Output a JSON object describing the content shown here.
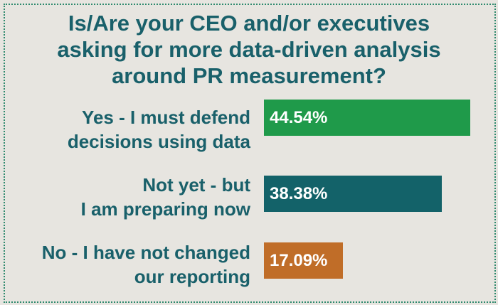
{
  "chart_data": {
    "type": "bar",
    "orientation": "horizontal",
    "title_lines": [
      "Is/Are your CEO and/or executives",
      "asking for more data-driven analysis",
      "around PR measurement?"
    ],
    "categories": [
      [
        "Yes - I must defend",
        "decisions using data"
      ],
      [
        "Not yet - but",
        "I am preparing now"
      ],
      [
        "No - I have not changed",
        "our reporting"
      ]
    ],
    "values": [
      44.54,
      38.38,
      17.09
    ],
    "value_labels": [
      "44.54%",
      "38.38%",
      "17.09%"
    ],
    "bar_colors": [
      "#1f9a4a",
      "#136269",
      "#c06d28"
    ],
    "xlim": [
      0,
      44.54
    ],
    "grid": false,
    "legend": "none"
  }
}
